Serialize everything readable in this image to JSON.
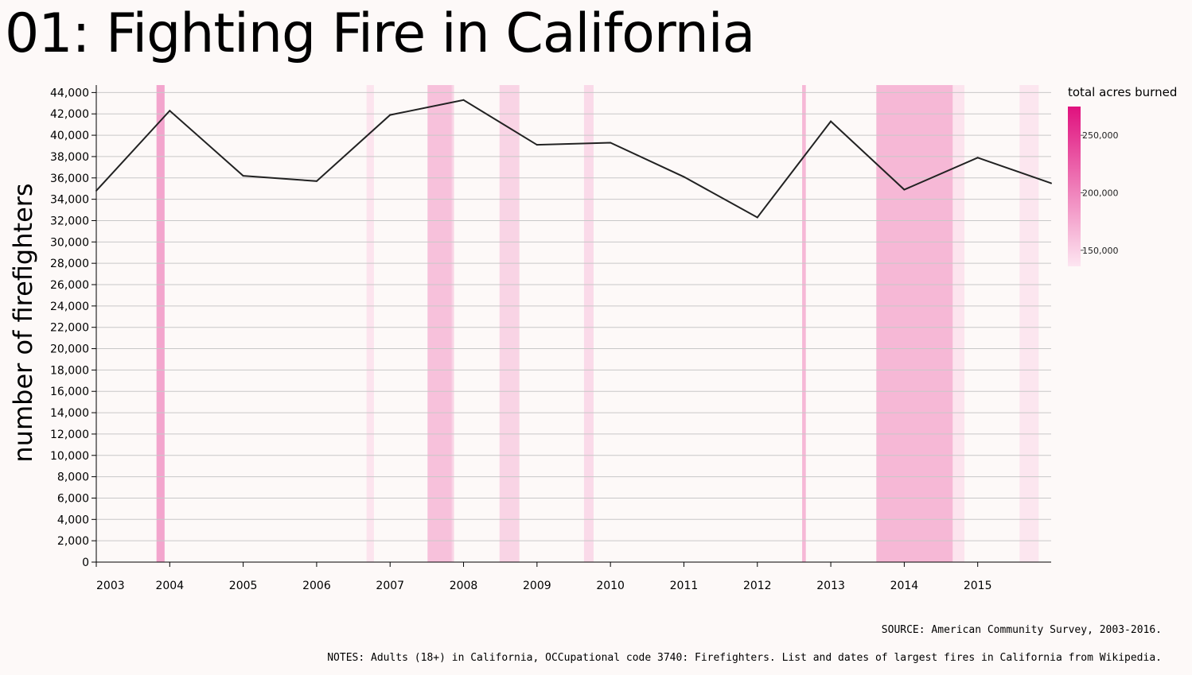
{
  "title": "01: Fighting Fire in California",
  "chart_data": {
    "type": "line",
    "ylabel": "number of firefighters",
    "xlabel": "",
    "ylim": [
      0,
      44700
    ],
    "yticks": [
      0,
      2000,
      4000,
      6000,
      8000,
      10000,
      12000,
      14000,
      16000,
      18000,
      20000,
      22000,
      24000,
      26000,
      28000,
      30000,
      32000,
      34000,
      36000,
      38000,
      40000,
      42000,
      44000
    ],
    "ytick_labels": [
      "0",
      "2,000",
      "4,000",
      "6,000",
      "8,000",
      "10,000",
      "12,000",
      "14,000",
      "16,000",
      "18,000",
      "20,000",
      "22,000",
      "24,000",
      "26,000",
      "28,000",
      "30,000",
      "32,000",
      "34,000",
      "36,000",
      "38,000",
      "40,000",
      "42,000",
      "44,000"
    ],
    "xlim": [
      2003,
      2016
    ],
    "xticks": [
      2003,
      2004,
      2005,
      2006,
      2007,
      2008,
      2009,
      2010,
      2011,
      2012,
      2013,
      2014,
      2015
    ],
    "xtick_labels": [
      "2003",
      "2004",
      "2005",
      "2006",
      "2007",
      "2008",
      "2009",
      "2010",
      "2011",
      "2012",
      "2013",
      "2014",
      "2015"
    ],
    "grid": "horizontal",
    "series": [
      {
        "x": [
          2003,
          2004,
          2005,
          2006,
          2007,
          2008,
          2009,
          2010,
          2011,
          2012,
          2013,
          2014,
          2015,
          2016
        ],
        "values": [
          34800,
          42300,
          36200,
          35700,
          41900,
          43300,
          39100,
          39300,
          36100,
          32300,
          41300,
          34900,
          37900,
          35500
        ],
        "color": "#222222"
      }
    ],
    "fire_bands": [
      {
        "start": 2003.82,
        "end": 2003.93,
        "acres": 215000
      },
      {
        "start": 2006.68,
        "end": 2006.78,
        "acres": 147000
      },
      {
        "start": 2007.51,
        "end": 2007.84,
        "acres": 185000
      },
      {
        "start": 2007.84,
        "end": 2007.87,
        "acres": 165000
      },
      {
        "start": 2008.49,
        "end": 2008.76,
        "acres": 165000
      },
      {
        "start": 2009.64,
        "end": 2009.77,
        "acres": 158000
      },
      {
        "start": 2012.61,
        "end": 2012.66,
        "acres": 195000
      },
      {
        "start": 2013.62,
        "end": 2014.66,
        "acres": 195000
      },
      {
        "start": 2014.66,
        "end": 2014.82,
        "acres": 147000
      },
      {
        "start": 2015.57,
        "end": 2015.83,
        "acres": 145000
      }
    ],
    "legend": {
      "title": "total acres burned",
      "placement": "top-right",
      "domain": [
        136000,
        275000
      ],
      "ticks": [
        150000,
        200000,
        250000
      ],
      "tick_labels": [
        "150,000",
        "200,000",
        "250,000"
      ],
      "color_low": "#fde6f1",
      "color_high": "#e0117e"
    }
  },
  "source_note": "SOURCE: American Community Survey, 2003-2016.",
  "notes": "NOTES: Adults (18+) in California, OCCupational code 3740: Firefighters. List and dates of largest fires in California from Wikipedia."
}
